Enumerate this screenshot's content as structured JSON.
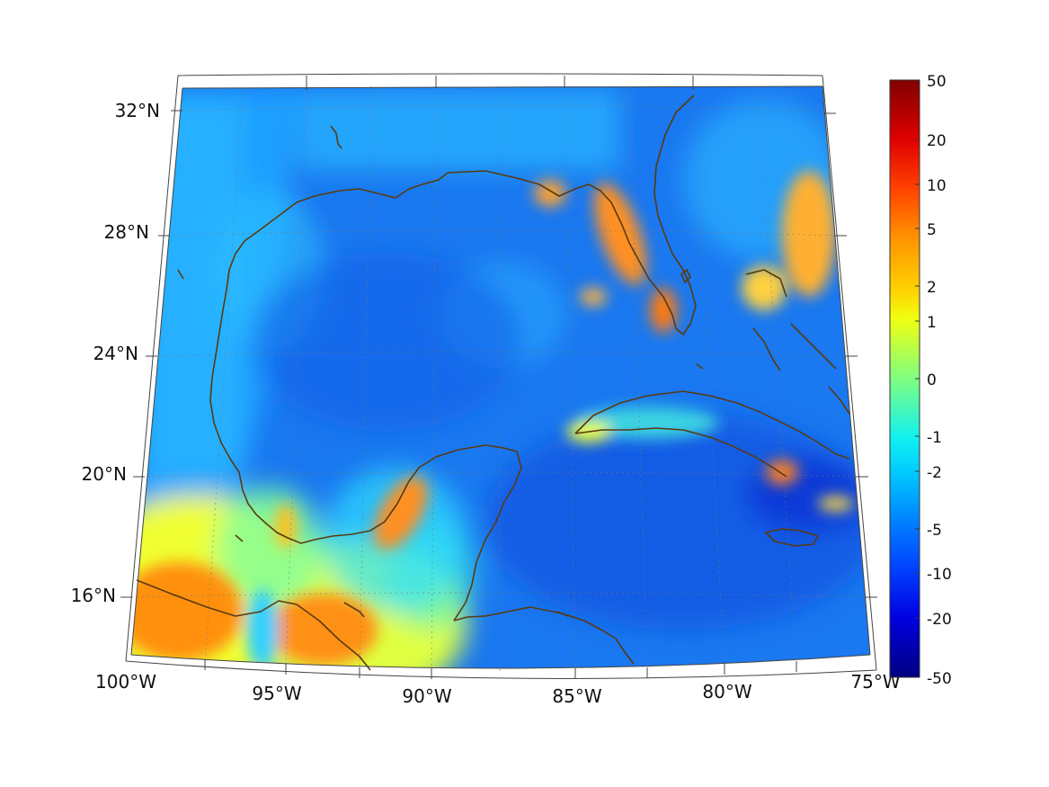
{
  "map": {
    "region": "Gulf of Mexico and Caribbean",
    "lat_ticks": [
      "32°N",
      "28°N",
      "24°N",
      "20°N",
      "16°N"
    ],
    "lon_ticks": [
      "100°W",
      "95°W",
      "90°W",
      "85°W",
      "80°W",
      "75°W"
    ],
    "coastline_color": "#5a3a10",
    "gridline_color": "#888888"
  },
  "colorbar": {
    "colormap": "jet",
    "tick_labels": [
      "50",
      "20",
      "10",
      "5",
      "2",
      "1",
      "0",
      "-1",
      "-2",
      "-5",
      "-10",
      "-20",
      "-50"
    ]
  }
}
